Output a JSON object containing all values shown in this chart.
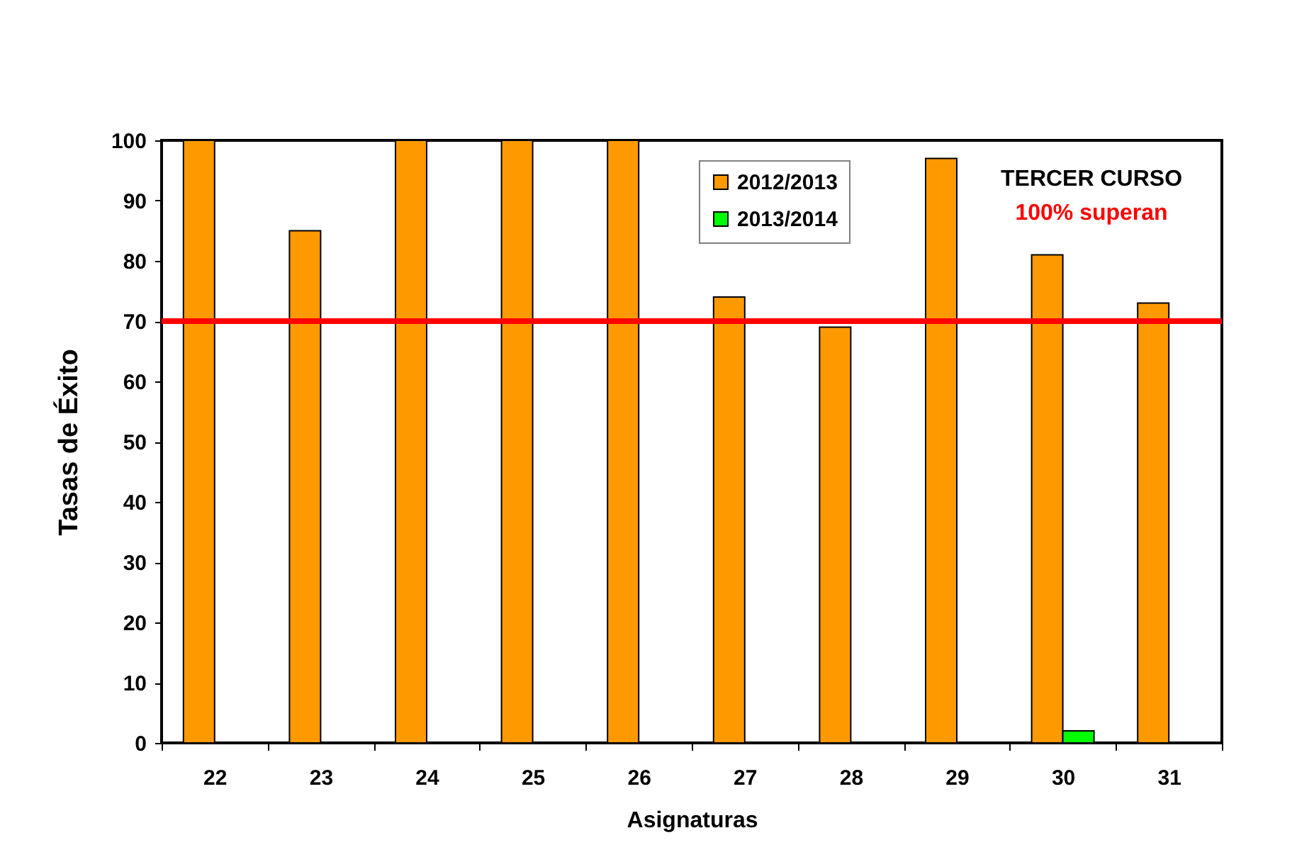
{
  "chart_data": {
    "type": "bar",
    "categories": [
      "22",
      "23",
      "24",
      "25",
      "26",
      "27",
      "28",
      "29",
      "30",
      "31"
    ],
    "series": [
      {
        "name": "2012/2013",
        "color": "#ff9900",
        "values": [
          100,
          85,
          100,
          100,
          100,
          74,
          69,
          97,
          81,
          73
        ]
      },
      {
        "name": "2013/2014",
        "color": "#00ff00",
        "values": [
          null,
          null,
          null,
          null,
          null,
          null,
          null,
          null,
          2,
          null
        ]
      }
    ],
    "xlabel": "Asignaturas",
    "ylabel": "Tasas de Éxito",
    "ylim": [
      0,
      100
    ],
    "yticks": [
      0,
      10,
      20,
      30,
      40,
      50,
      60,
      70,
      80,
      90,
      100
    ],
    "grid": false,
    "legend": "top",
    "ref_lines": [
      {
        "axis": "y",
        "value": 70,
        "color": "#ff0000"
      }
    ],
    "annotations": [
      "TERCER CURSO",
      "100% superan"
    ]
  }
}
